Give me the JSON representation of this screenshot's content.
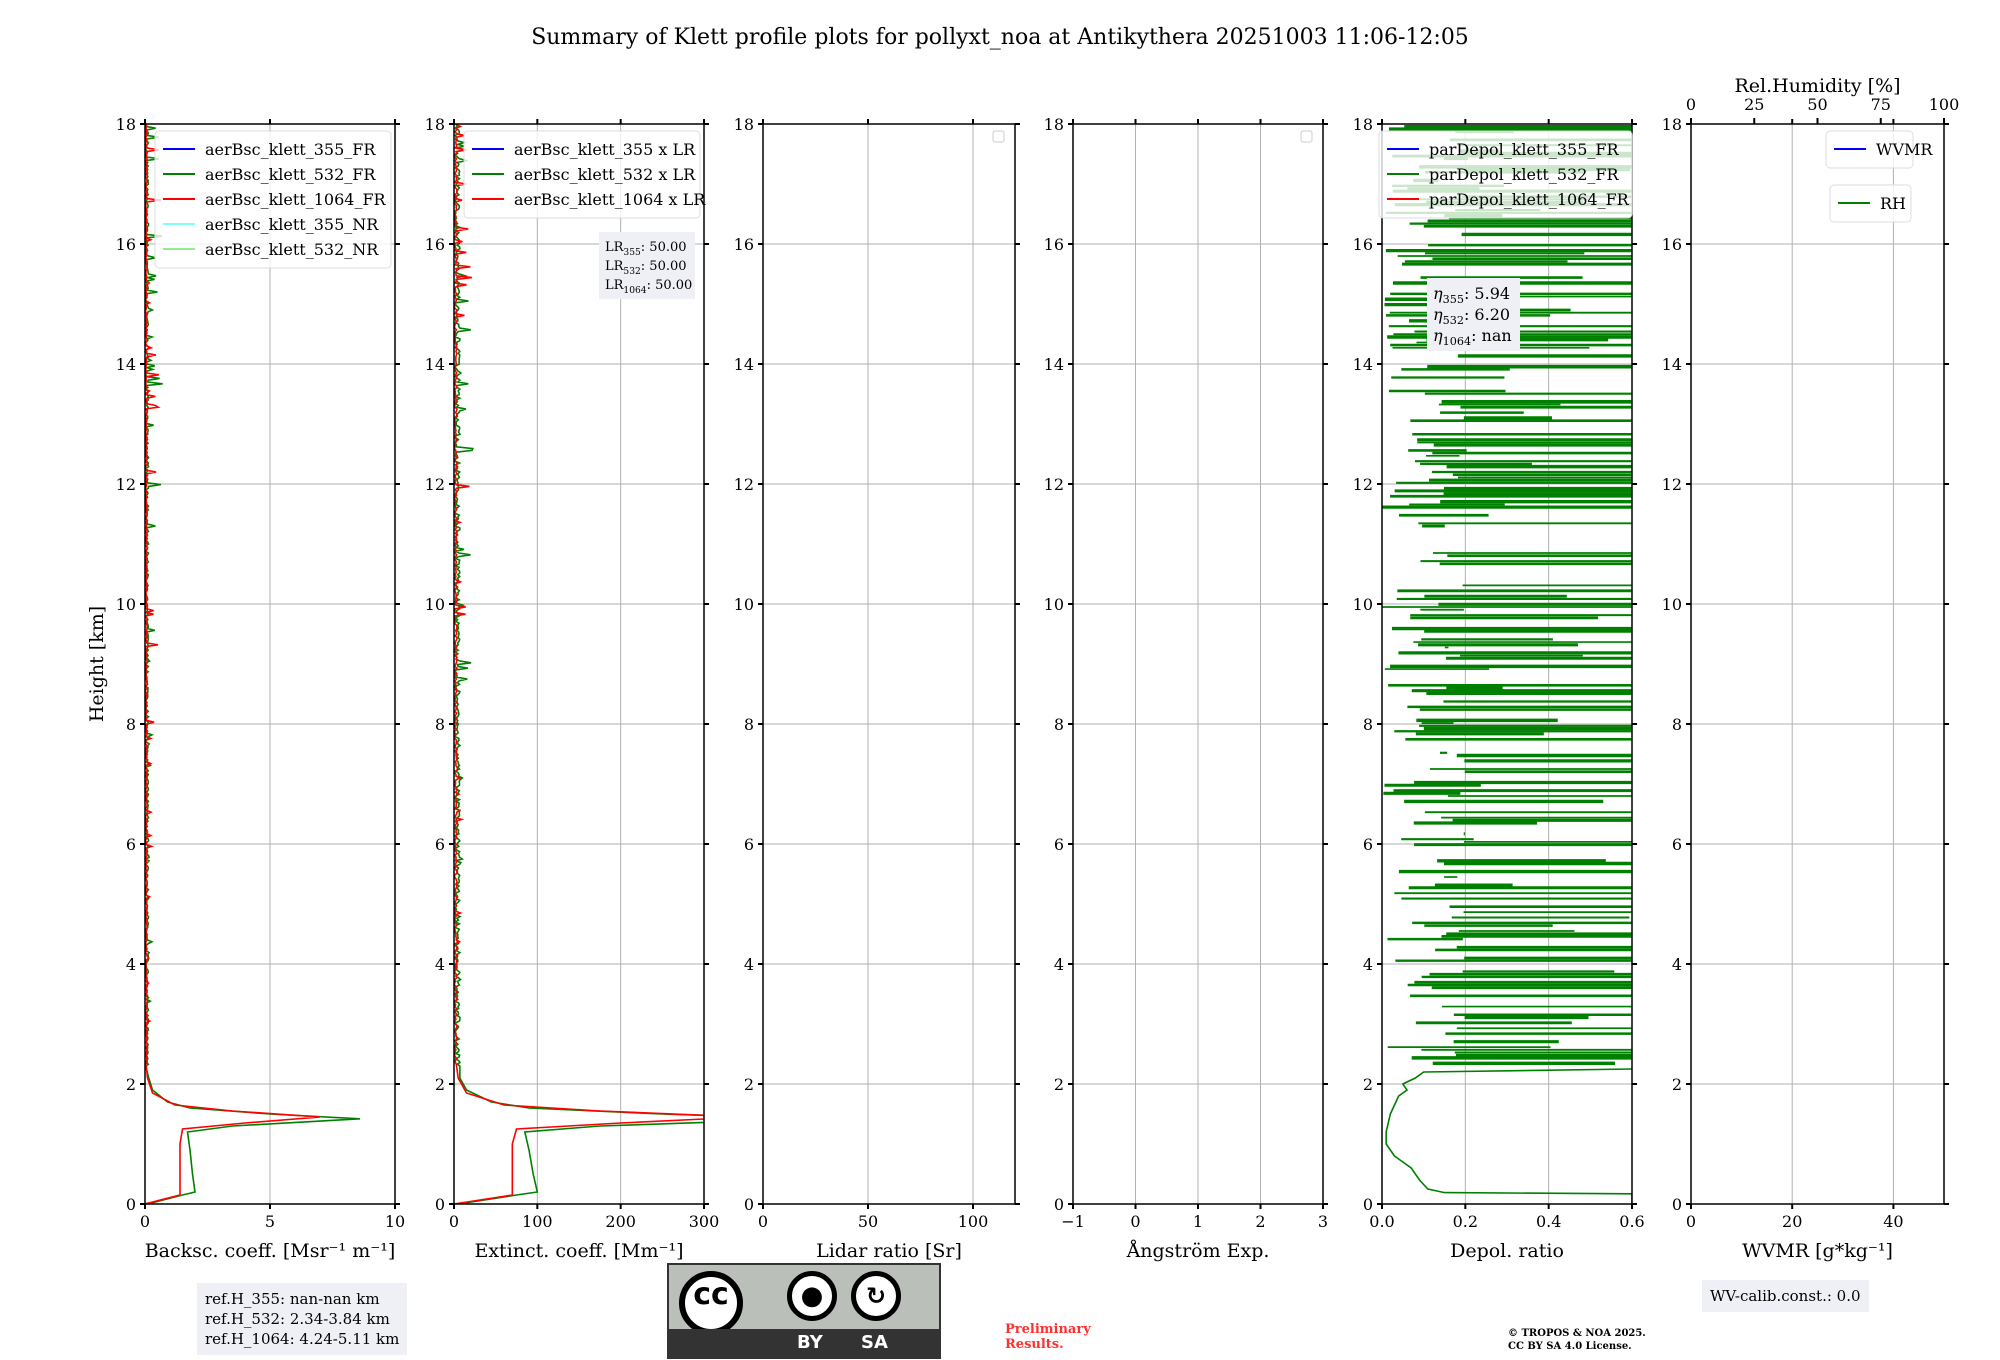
{
  "title": "Summary of Klett profile plots for pollyxt_noa at Antikythera 20251003 11:06-12:05",
  "ylabel": "Height [km]",
  "colors": {
    "c355": "#0000ff",
    "c532": "#008000",
    "c1064": "#ff0000",
    "c355nr": "#80ffff",
    "c532nr": "#90ee90",
    "grid": "#b0b0b0",
    "box": "#eef0f5"
  },
  "chart_data": [
    {
      "type": "line",
      "id": "backscatter",
      "xlabel": "Backsc. coeff. [Msr⁻¹ m⁻¹]",
      "xlim": [
        0,
        10
      ],
      "ylim": [
        0,
        18
      ],
      "xticks": [
        "0",
        "5",
        "10"
      ],
      "xtick_values": [
        0,
        5,
        10
      ],
      "legend": [
        "aerBsc_klett_355_FR",
        "aerBsc_klett_532_FR",
        "aerBsc_klett_1064_FR",
        "aerBsc_klett_355_NR",
        "aerBsc_klett_532_NR"
      ],
      "legend_colors": [
        "c355",
        "c532",
        "c1064",
        "c355nr",
        "c532nr"
      ],
      "legend_pos": "top-right",
      "series": [
        {
          "name": "aerBsc_klett_532_FR",
          "color": "c532",
          "h": [
            0,
            0.15,
            0.2,
            0.5,
            0.9,
            1.2,
            1.3,
            1.42,
            1.5,
            1.6,
            1.7,
            1.9,
            2.1,
            2.3,
            18
          ],
          "v": [
            0.1,
            1.5,
            2.0,
            1.9,
            1.8,
            1.7,
            3.5,
            8.6,
            5,
            1.8,
            0.9,
            0.3,
            0.15,
            0.08,
            0.08
          ],
          "noise": true
        },
        {
          "name": "aerBsc_klett_1064_FR",
          "color": "c1064",
          "h": [
            0,
            0.15,
            0.5,
            1.0,
            1.25,
            1.35,
            1.45,
            1.55,
            1.65,
            1.85,
            2.1,
            2.3,
            18
          ],
          "v": [
            0,
            1.4,
            1.4,
            1.4,
            1.5,
            4,
            7,
            3.5,
            1.2,
            0.3,
            0.1,
            0.05,
            0.05
          ],
          "noise": true
        }
      ]
    },
    {
      "type": "line",
      "id": "extinction",
      "xlabel": "Extinct. coeff. [Mm⁻¹]",
      "xlim": [
        0,
        300
      ],
      "ylim": [
        0,
        18
      ],
      "xticks": [
        "0",
        "100",
        "200",
        "300"
      ],
      "xtick_values": [
        0,
        100,
        200,
        300
      ],
      "legend": [
        "aerBsc_klett_355 x LR",
        "aerBsc_klett_532 x LR",
        "aerBsc_klett_1064 x LR"
      ],
      "legend_colors": [
        "c355",
        "c532",
        "c1064"
      ],
      "legend_pos": "top-right",
      "annotation": [
        {
          "base": "LR",
          "sub": "355",
          "val": ": 50.00"
        },
        {
          "base": "LR",
          "sub": "532",
          "val": ": 50.00"
        },
        {
          "base": "LR",
          "sub": "1064",
          "val": ": 50.00"
        }
      ],
      "series": [
        {
          "name": "aerBsc_klett_532 x LR",
          "color": "c532",
          "h": [
            0,
            0.15,
            0.2,
            0.5,
            0.9,
            1.2,
            1.3,
            1.42,
            1.5,
            1.6,
            1.7,
            1.9,
            2.1,
            2.3,
            18
          ],
          "v": [
            5,
            75,
            100,
            95,
            90,
            85,
            175,
            430,
            250,
            90,
            45,
            15,
            7,
            4,
            4
          ],
          "noise": true
        },
        {
          "name": "aerBsc_klett_1064 x LR",
          "color": "c1064",
          "h": [
            0,
            0.15,
            0.5,
            1.0,
            1.25,
            1.35,
            1.45,
            1.55,
            1.65,
            1.85,
            2.1,
            2.3,
            18
          ],
          "v": [
            0,
            70,
            70,
            70,
            75,
            200,
            350,
            175,
            60,
            15,
            5,
            2,
            2
          ],
          "noise": true
        }
      ]
    },
    {
      "type": "line",
      "id": "lidar-ratio",
      "xlabel": "Lidar ratio [Sr]",
      "xlim": [
        0,
        120
      ],
      "ylim": [
        0,
        18
      ],
      "xticks": [
        "0",
        "50",
        "100"
      ],
      "xtick_values": [
        0,
        50,
        100
      ],
      "series": []
    },
    {
      "type": "line",
      "id": "angstrom",
      "xlabel": "Ångström Exp.",
      "xlim": [
        -1,
        3
      ],
      "ylim": [
        0,
        18
      ],
      "xticks": [
        "−1",
        "0",
        "1",
        "2",
        "3"
      ],
      "xtick_values": [
        -1,
        0,
        1,
        2,
        3
      ],
      "series": []
    },
    {
      "type": "line",
      "id": "depol",
      "xlabel": "Depol. ratio",
      "xlim": [
        0,
        0.6
      ],
      "ylim": [
        0,
        18
      ],
      "xticks": [
        "0.0",
        "0.2",
        "0.4",
        "0.6"
      ],
      "xtick_values": [
        0,
        0.2,
        0.4,
        0.6
      ],
      "legend": [
        "parDepol_klett_355_FR",
        "parDepol_klett_532_FR",
        "parDepol_klett_1064_FR"
      ],
      "legend_colors": [
        "c355",
        "c532",
        "c1064"
      ],
      "legend_pos": "top-left",
      "annotation": [
        {
          "base": "η",
          "sub": "355",
          "val": ": 5.94"
        },
        {
          "base": "η",
          "sub": "532",
          "val": ": 6.20"
        },
        {
          "base": "η",
          "sub": "1064",
          "val": ": nan"
        }
      ],
      "series": [
        {
          "name": "parDepol_klett_532_FR",
          "color": "c532",
          "h": [
            0,
            0.17,
            0.19,
            0.25,
            0.4,
            0.6,
            0.8,
            1.0,
            1.2,
            1.5,
            1.8,
            1.9,
            2.0,
            2.1,
            2.2,
            2.25
          ],
          "v": [
            0.6,
            0.6,
            0.15,
            0.11,
            0.09,
            0.07,
            0.03,
            0.01,
            0.01,
            0.02,
            0.04,
            0.06,
            0.05,
            0.08,
            0.1,
            0.6
          ],
          "noise_depol": true
        }
      ]
    },
    {
      "type": "line",
      "id": "wvmr",
      "xlabel": "WVMR [g*kg⁻¹]",
      "xlim": [
        0,
        50
      ],
      "ylim": [
        0,
        18
      ],
      "xticks": [
        "0",
        "20",
        "40"
      ],
      "xtick_values": [
        0,
        20,
        40
      ],
      "top_xlabel": "Rel.Humidity [%]",
      "top_xticks": [
        "0",
        "25",
        "50",
        "75",
        "100"
      ],
      "top_xtick_values": [
        0,
        25,
        50,
        75,
        100
      ],
      "legend": [
        "WVMR"
      ],
      "legend_colors": [
        "c355"
      ],
      "legend2": [
        "RH"
      ],
      "legend2_colors": [
        "c532"
      ],
      "series": []
    }
  ],
  "yticks": [
    "0",
    "2",
    "4",
    "6",
    "8",
    "10",
    "12",
    "14",
    "16",
    "18"
  ],
  "ref_heights": [
    "ref.H_355: nan-nan km",
    "ref.H_532: 2.34-3.84 km",
    "ref.H_1064: 4.24-5.11 km"
  ],
  "wv_calib": "WV-calib.const.: 0.0",
  "license": {
    "by": "BY",
    "sa": "SA",
    "cc": "cc"
  },
  "preliminary": [
    "Preliminary",
    "Results."
  ],
  "copyright": [
    "© TROPOS & NOA 2025.",
    "CC BY SA 4.0 License."
  ]
}
